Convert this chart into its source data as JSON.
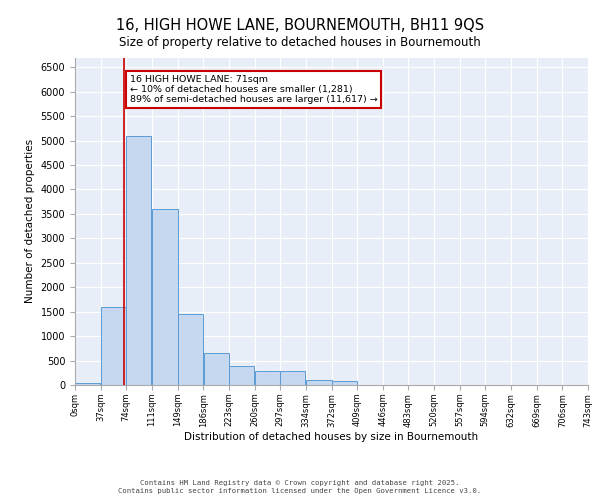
{
  "title": "16, HIGH HOWE LANE, BOURNEMOUTH, BH11 9QS",
  "subtitle": "Size of property relative to detached houses in Bournemouth",
  "xlabel": "Distribution of detached houses by size in Bournemouth",
  "ylabel": "Number of detached properties",
  "footer_line1": "Contains HM Land Registry data © Crown copyright and database right 2025.",
  "footer_line2": "Contains public sector information licensed under the Open Government Licence v3.0.",
  "annotation_title": "16 HIGH HOWE LANE: 71sqm",
  "annotation_line1": "← 10% of detached houses are smaller (1,281)",
  "annotation_line2": "89% of semi-detached houses are larger (11,617) →",
  "property_size": 71,
  "bar_edges": [
    0,
    37,
    74,
    111,
    149,
    186,
    223,
    260,
    297,
    334,
    372,
    409,
    446,
    483,
    520,
    557,
    594,
    632,
    669,
    706,
    743
  ],
  "bar_heights": [
    40,
    1600,
    5100,
    3600,
    1450,
    650,
    390,
    280,
    280,
    100,
    90,
    0,
    0,
    0,
    0,
    0,
    0,
    0,
    0,
    0
  ],
  "bar_color": "#c5d8ef",
  "bar_edge_color": "#5b9bd5",
  "red_line_color": "#cc0000",
  "annotation_box_color": "#cc0000",
  "background_color": "#e8eef7",
  "grid_color": "#ffffff",
  "ylim": [
    0,
    6700
  ],
  "yticks": [
    0,
    500,
    1000,
    1500,
    2000,
    2500,
    3000,
    3500,
    4000,
    4500,
    5000,
    5500,
    6000,
    6500
  ]
}
